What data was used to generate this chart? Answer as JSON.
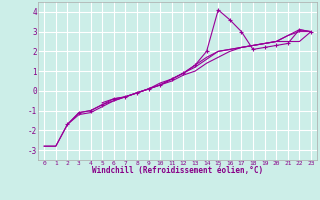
{
  "xlabel": "Windchill (Refroidissement éolien,°C)",
  "background_color": "#cceee8",
  "grid_color": "#ffffff",
  "line_color": "#990099",
  "xlim": [
    -0.5,
    23.5
  ],
  "ylim": [
    -3.5,
    4.5
  ],
  "yticks": [
    -3,
    -2,
    -1,
    0,
    1,
    2,
    3,
    4
  ],
  "xticks": [
    0,
    1,
    2,
    3,
    4,
    5,
    6,
    7,
    8,
    9,
    10,
    11,
    12,
    13,
    14,
    15,
    16,
    17,
    18,
    19,
    20,
    21,
    22,
    23
  ],
  "series1_x": [
    0,
    1,
    2,
    3,
    4,
    5,
    6,
    7,
    8,
    9,
    10,
    11,
    12,
    13,
    14,
    15,
    16,
    17,
    18,
    19,
    20,
    21,
    22,
    23
  ],
  "series1_y": [
    -2.8,
    -2.8,
    -1.7,
    -1.1,
    -1.0,
    -0.7,
    -0.5,
    -0.3,
    -0.1,
    0.1,
    0.3,
    0.6,
    0.9,
    1.3,
    1.7,
    2.0,
    2.1,
    2.2,
    2.3,
    2.4,
    2.5,
    2.8,
    3.1,
    3.0
  ],
  "series2_x": [
    2,
    3,
    4,
    5,
    6,
    7,
    8,
    9,
    10,
    11,
    12,
    13,
    14,
    15,
    16,
    17,
    18,
    19,
    20,
    21,
    22,
    23
  ],
  "series2_y": [
    -1.7,
    -1.1,
    -1.0,
    -0.7,
    -0.4,
    -0.3,
    -0.1,
    0.1,
    0.3,
    0.6,
    0.9,
    1.3,
    2.0,
    4.1,
    3.6,
    3.0,
    2.1,
    2.2,
    2.3,
    2.4,
    3.1,
    3.0
  ],
  "series3_x": [
    0,
    1,
    2,
    3,
    4,
    5,
    6,
    7,
    8,
    9,
    10,
    11,
    12,
    13,
    14,
    15,
    16,
    17,
    18,
    19,
    20,
    21,
    22,
    23
  ],
  "series3_y": [
    -2.8,
    -2.8,
    -1.7,
    -1.2,
    -1.1,
    -0.8,
    -0.5,
    -0.3,
    -0.1,
    0.1,
    0.3,
    0.5,
    0.8,
    1.0,
    1.4,
    1.7,
    2.0,
    2.2,
    2.3,
    2.4,
    2.5,
    2.8,
    3.0,
    3.0
  ],
  "series4_x": [
    5,
    6,
    7,
    8,
    9,
    10,
    11,
    12,
    13,
    14,
    15,
    16,
    17,
    18,
    19,
    20,
    21,
    22,
    23
  ],
  "series4_y": [
    -0.6,
    -0.4,
    -0.3,
    -0.1,
    0.1,
    0.4,
    0.6,
    0.9,
    1.2,
    1.6,
    2.0,
    2.1,
    2.2,
    2.3,
    2.4,
    2.5,
    2.5,
    2.5,
    3.0
  ]
}
